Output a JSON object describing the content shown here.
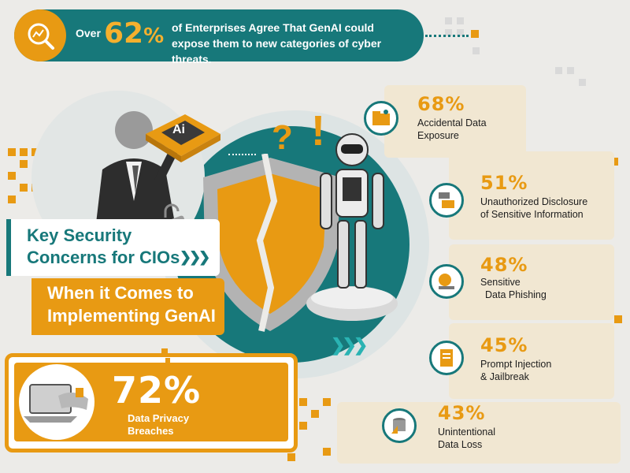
{
  "banner": {
    "prefix": "Over",
    "percent": "62",
    "percent_sign": "%",
    "line1": "of Enterprises Agree That GenAI could",
    "line2": "expose them to new categories of cyber threats."
  },
  "title": {
    "line1": "Key Security",
    "line2": "Concerns for CIOs",
    "arrows": "❯❯❯",
    "line3": "When it Comes to",
    "line4": "Implementing GenAI"
  },
  "chip_label": "Ai",
  "marks": {
    "question": "?",
    "exclaim": "!"
  },
  "main_stat": {
    "value": "72%",
    "label_line1": "Data Privacy",
    "label_line2": "Breaches"
  },
  "stats": [
    {
      "value": "68%",
      "label_line1": "Accidental Data",
      "label_line2": "Exposure",
      "icon": "folder-leak-icon"
    },
    {
      "value": "51%",
      "label_line1": "Unauthorized Disclosure",
      "label_line2": "of Sensitive Information",
      "icon": "camera-disclosure-icon"
    },
    {
      "value": "48%",
      "label_line1": "Sensitive",
      "label_line2": "Data Phishing",
      "icon": "laptop-phishing-icon"
    },
    {
      "value": "45%",
      "label_line1": "Prompt Injection",
      "label_line2": "& Jailbreak",
      "icon": "file-injection-icon"
    },
    {
      "value": "43%",
      "label_line1": "Unintentional",
      "label_line2": "Data Loss",
      "icon": "database-loss-icon"
    }
  ],
  "colors": {
    "teal": "#17787a",
    "orange": "#e89a13",
    "cream": "#f1e7d2",
    "background": "#ecebe8"
  }
}
